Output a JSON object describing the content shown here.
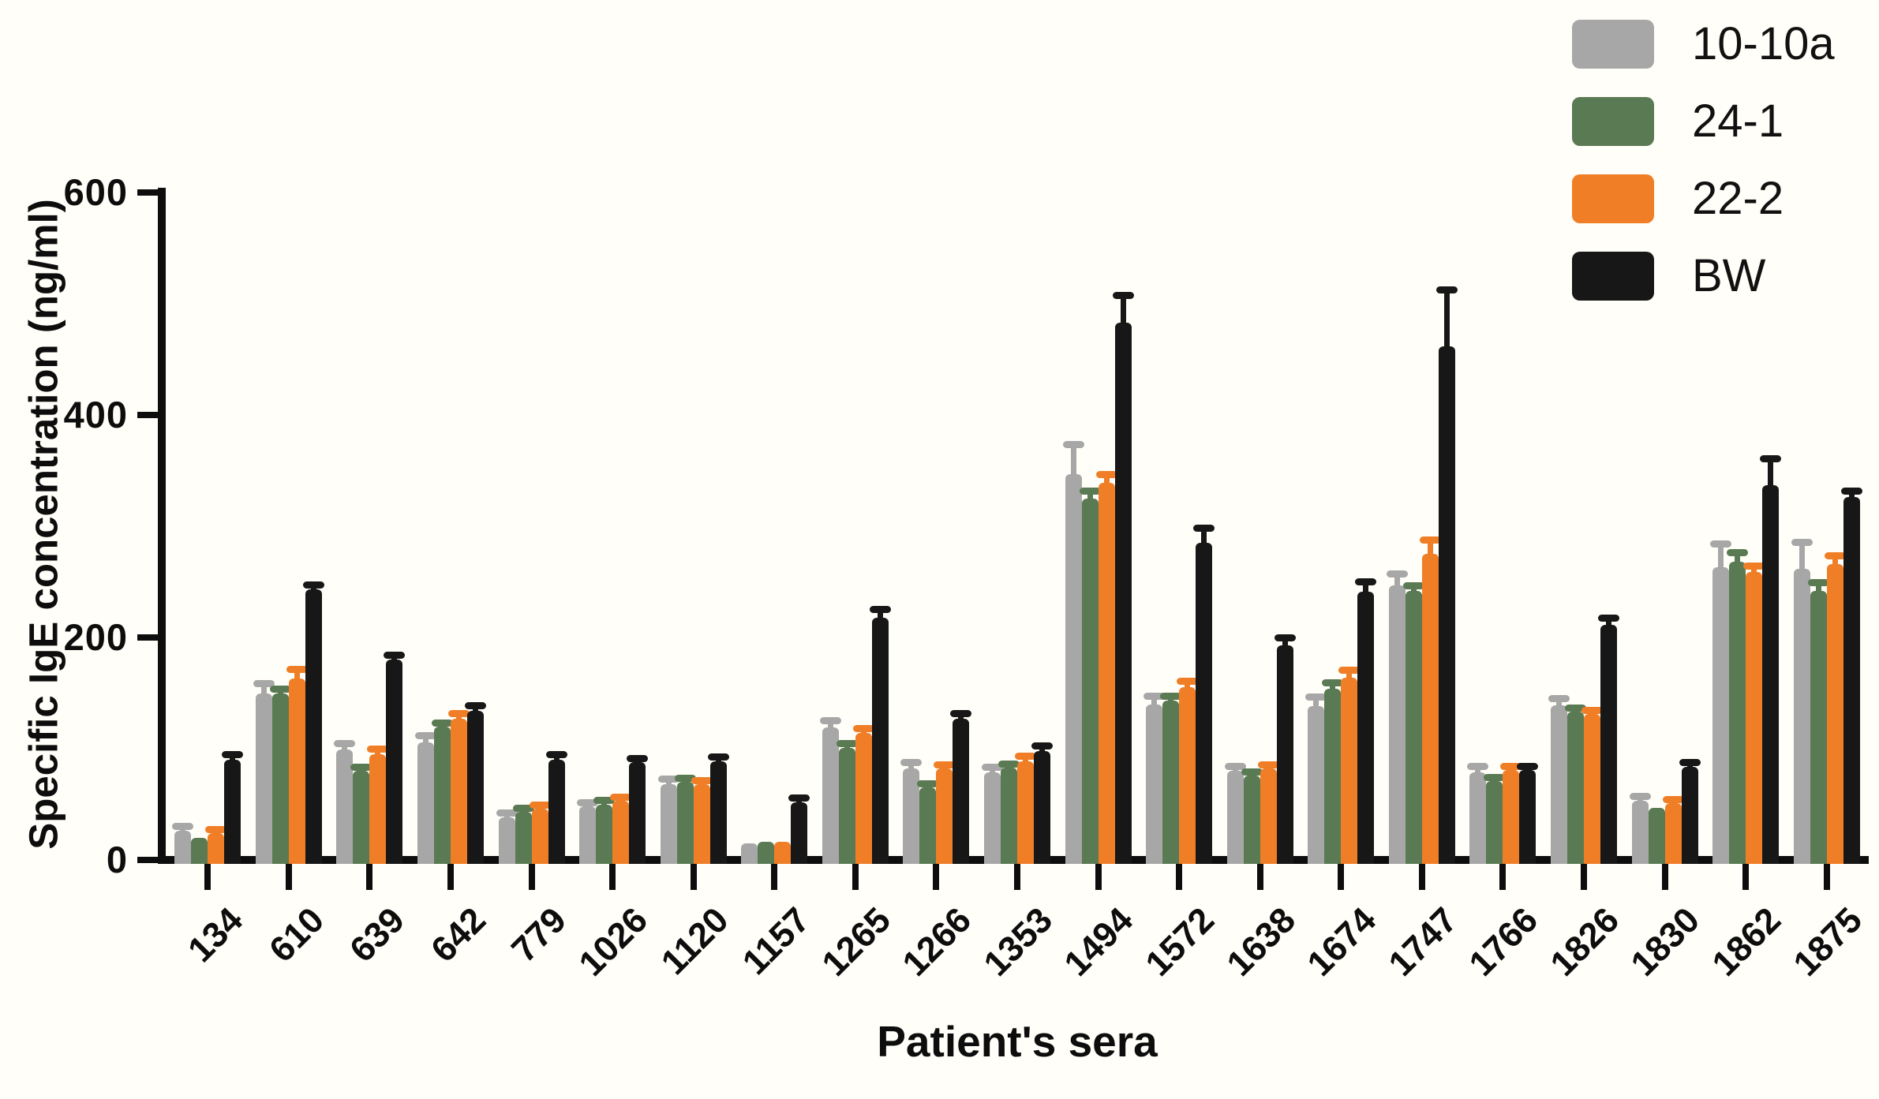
{
  "figure": {
    "x_title": "Patient's sera",
    "y_title": "Specific IgE concentration (ng/ml)"
  },
  "legend": {
    "position": "top-right",
    "items": [
      {
        "label": "10-10a",
        "color": "#a7a7a7"
      },
      {
        "label": "24-1",
        "color": "#5a7a53"
      },
      {
        "label": "22-2",
        "color": "#f07e26"
      },
      {
        "label": "BW",
        "color": "#171717"
      }
    ]
  },
  "chart_data": {
    "type": "bar",
    "title": "",
    "xlabel": "Patient's sera",
    "ylabel": "Specific IgE concentration (ng/ml)",
    "ylim": [
      0,
      600
    ],
    "yticks": [
      0,
      200,
      400,
      600
    ],
    "grid": false,
    "legend_position": "top-right",
    "error_bars": true,
    "categories": [
      "134",
      "610",
      "639",
      "642",
      "779",
      "1026",
      "1120",
      "1157",
      "1265",
      "1266",
      "1353",
      "1494",
      "1572",
      "1638",
      "1674",
      "1747",
      "1766",
      "1826",
      "1830",
      "1862",
      "1875"
    ],
    "series": [
      {
        "name": "10-10a",
        "color": "#a7a7a7",
        "values": [
          26,
          150,
          99,
          106,
          38,
          48,
          68,
          15,
          119,
          82,
          79,
          347,
          140,
          80,
          138,
          247,
          79,
          139,
          53,
          263,
          262
        ],
        "errors": [
          4,
          8,
          5,
          5,
          4,
          3,
          4,
          2,
          6,
          5,
          4,
          26,
          7,
          4,
          8,
          10,
          5,
          6,
          4,
          21,
          23
        ]
      },
      {
        "name": "24-1",
        "color": "#5a7a53",
        "values": [
          20,
          150,
          80,
          120,
          43,
          50,
          70,
          16,
          101,
          65,
          83,
          325,
          143,
          76,
          154,
          242,
          71,
          133,
          47,
          268,
          242
        ],
        "errors": [
          2,
          3,
          3,
          3,
          3,
          3,
          3,
          2,
          3,
          3,
          3,
          6,
          4,
          3,
          5,
          4,
          3,
          3,
          2,
          8,
          7
        ]
      },
      {
        "name": "22-2",
        "color": "#f07e26",
        "values": [
          24,
          163,
          95,
          127,
          46,
          53,
          68,
          16,
          114,
          82,
          89,
          339,
          155,
          82,
          164,
          275,
          81,
          131,
          51,
          259,
          266
        ],
        "errors": [
          3,
          8,
          4,
          4,
          3,
          3,
          3,
          2,
          4,
          3,
          4,
          7,
          5,
          3,
          6,
          12,
          3,
          3,
          3,
          5,
          7
        ]
      },
      {
        "name": "BW",
        "color": "#171717",
        "values": [
          90,
          243,
          180,
          134,
          90,
          88,
          89,
          52,
          218,
          127,
          98,
          483,
          285,
          193,
          241,
          462,
          81,
          211,
          84,
          337,
          326
        ],
        "errors": [
          4,
          4,
          4,
          4,
          4,
          3,
          3,
          3,
          7,
          4,
          4,
          24,
          13,
          6,
          9,
          50,
          3,
          6,
          3,
          23,
          5
        ]
      }
    ]
  }
}
